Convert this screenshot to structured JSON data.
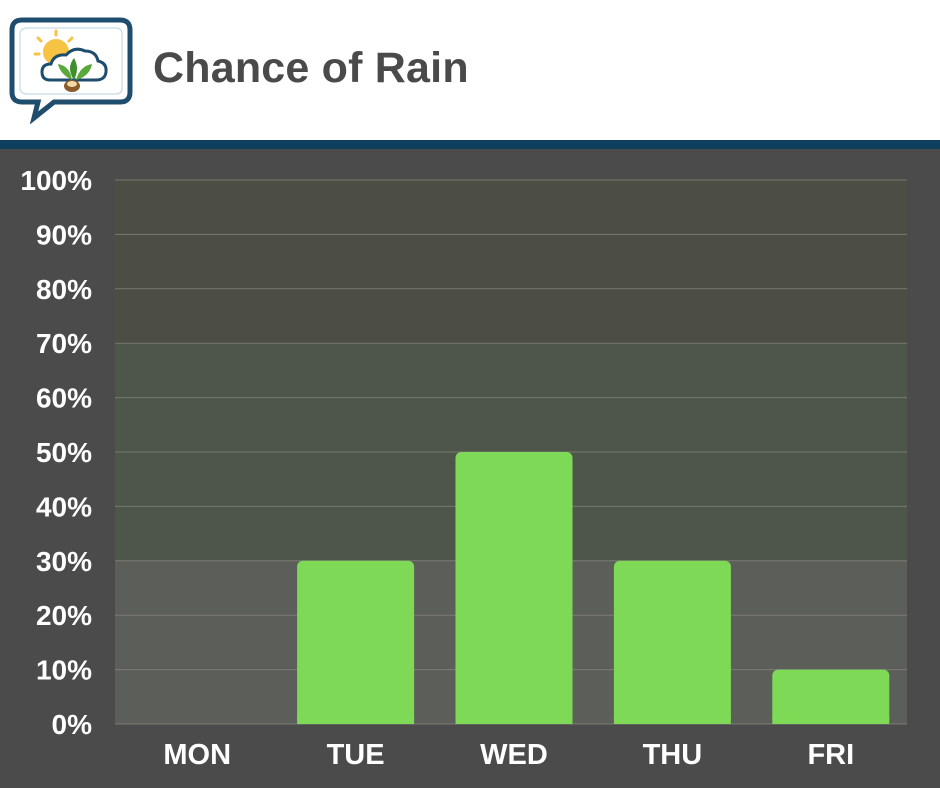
{
  "header": {
    "title": "Chance of Rain",
    "logo_icon": "weather-leaf-logo-icon"
  },
  "colors": {
    "header_bg": "#ffffff",
    "header_rule": "#0f3f5f",
    "title": "#4a4a4a",
    "background": "#4b4b4b",
    "plot_low": "#5c5e5a",
    "plot_mid": "#4e5649",
    "plot_high": "#4c4e44",
    "bar": "#7ed957",
    "grid": "#8a8a80",
    "text": "#ffffff"
  },
  "chart_data": {
    "type": "bar",
    "title": "Chance of Rain",
    "categories": [
      "MON",
      "TUE",
      "WED",
      "THU",
      "FRI"
    ],
    "values": [
      0,
      30,
      50,
      30,
      10
    ],
    "unit": "%",
    "ylim": [
      0,
      100
    ],
    "yticks": [
      0,
      10,
      20,
      30,
      40,
      50,
      60,
      70,
      80,
      90,
      100
    ],
    "ytick_labels": [
      "0%",
      "10%",
      "20%",
      "30%",
      "40%",
      "50%",
      "60%",
      "70%",
      "80%",
      "90%",
      "100%"
    ],
    "grid": true,
    "legend": "none"
  }
}
